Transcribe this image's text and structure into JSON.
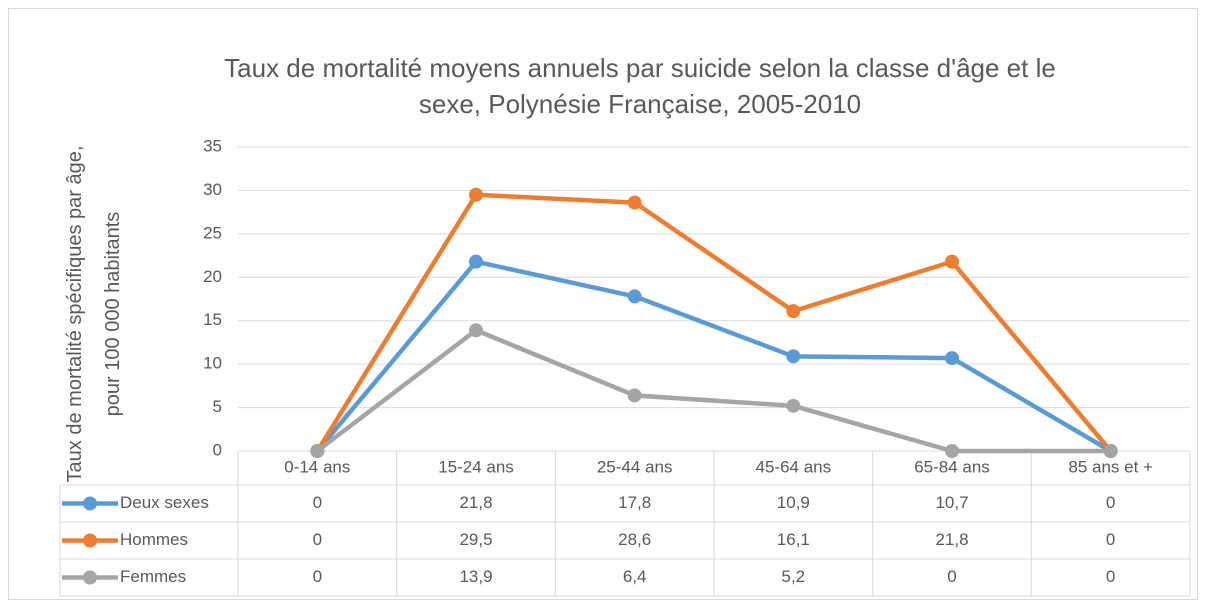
{
  "chart_data": {
    "type": "line",
    "title": "Taux de mortalité moyens annuels par suicide selon la classe d'âge et le\nsexe, Polynésie Française, 2005-2010",
    "y_label": "Taux de mortalité spécifiques par âge,\npour 100 000 habitants",
    "categories": [
      "0-14 ans",
      "15-24 ans",
      "25-44 ans",
      "45-64 ans",
      "65-84 ans",
      "85 ans et +"
    ],
    "series": [
      {
        "name": "Deux sexes",
        "color": "#5b9bd5",
        "values": [
          0,
          21.8,
          17.8,
          10.9,
          10.7,
          0
        ],
        "value_labels": [
          "0",
          "21,8",
          "17,8",
          "10,9",
          "10,7",
          "0"
        ]
      },
      {
        "name": "Hommes",
        "color": "#ed7d31",
        "values": [
          0,
          29.5,
          28.6,
          16.1,
          21.8,
          0
        ],
        "value_labels": [
          "0",
          "29,5",
          "28,6",
          "16,1",
          "21,8",
          "0"
        ]
      },
      {
        "name": "Femmes",
        "color": "#a5a5a5",
        "values": [
          0,
          13.9,
          6.4,
          5.2,
          0,
          0
        ],
        "value_labels": [
          "0",
          "13,9",
          "6,4",
          "5,2",
          "0",
          "0"
        ]
      }
    ],
    "ylim": [
      0,
      35
    ],
    "yticks": [
      0,
      5,
      10,
      15,
      20,
      25,
      30,
      35
    ],
    "grid": true
  }
}
